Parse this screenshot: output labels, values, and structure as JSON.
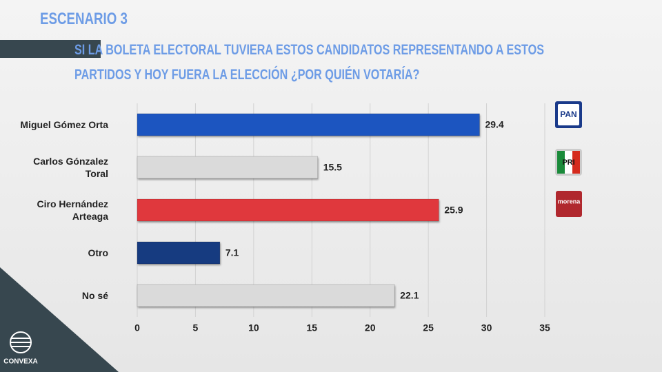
{
  "chart_data": {
    "type": "bar",
    "orientation": "horizontal",
    "title": "ESCENARIO 3",
    "subtitle": "SI LA BOLETA ELECTORAL TUVIERA ESTOS CANDIDATOS REPRESENTANDO A ESTOS PARTIDOS Y HOY FUERA LA ELECCIÓN ¿POR QUIÉN VOTARÍA?",
    "categories": [
      "Miguel Gómez Orta",
      "Carlos Gónzalez Toral",
      "Ciro Hernández Arteaga",
      "Otro",
      "No sé"
    ],
    "values": [
      29.4,
      15.5,
      25.9,
      7.1,
      22.1
    ],
    "colors": [
      "#1f55c0",
      "#dadada",
      "#e0383c",
      "#193a80",
      "#dadada"
    ],
    "xlim": [
      0,
      35
    ],
    "xticks": [
      0,
      5,
      10,
      15,
      20,
      25,
      30,
      35
    ],
    "grid": true
  },
  "slide": {
    "party_logos": [
      "PAN",
      "PRI",
      "morena"
    ],
    "brand": "CONVEXA"
  }
}
